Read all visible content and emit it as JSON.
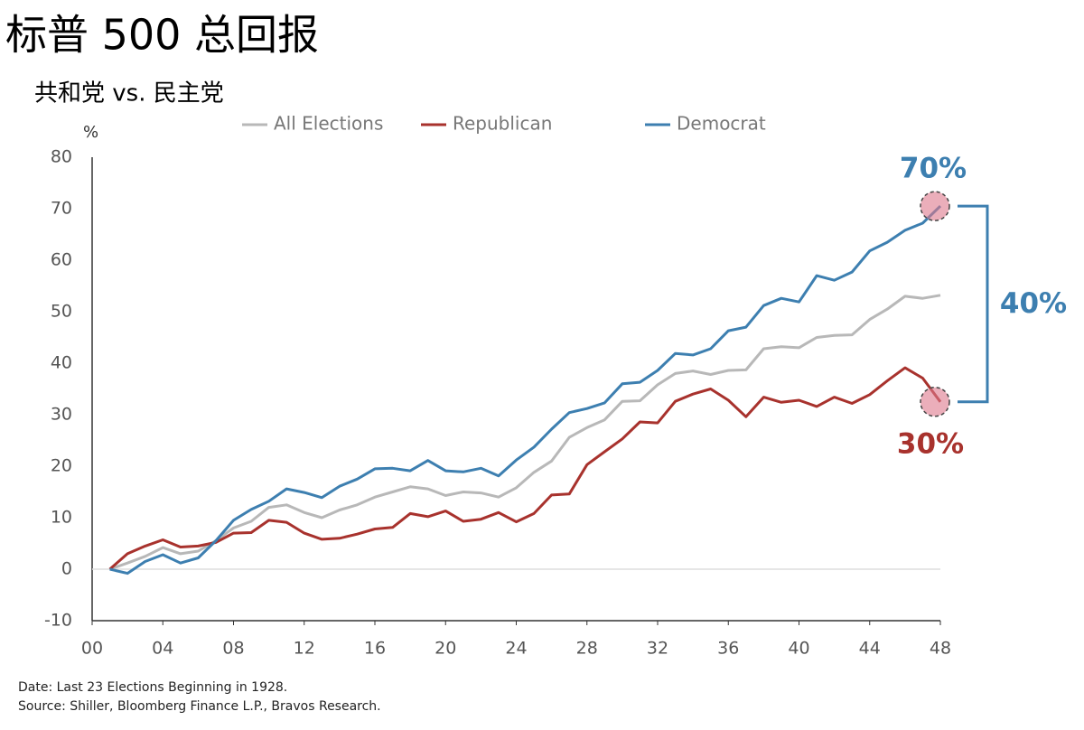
{
  "chart_data": {
    "type": "line",
    "title": "标普 500 总回报",
    "subtitle": "共和党 vs. 民主党",
    "ylabel": "%",
    "x": [
      1,
      2,
      3,
      4,
      5,
      6,
      7,
      8,
      9,
      10,
      11,
      12,
      13,
      14,
      15,
      16,
      17,
      18,
      19,
      20,
      21,
      22,
      23,
      24,
      25,
      26,
      27,
      28,
      29,
      30,
      31,
      32,
      33,
      34,
      35,
      36,
      37,
      38,
      39,
      40,
      41,
      42,
      43,
      44,
      45,
      46,
      47,
      48
    ],
    "series": [
      {
        "name": "All Elections",
        "color": "#b8b8b8",
        "values": [
          0,
          1.2,
          2.5,
          4.2,
          3,
          3.5,
          5.5,
          8,
          9.3,
          12,
          12.5,
          11,
          10,
          11.5,
          12.5,
          14,
          15,
          16,
          15.6,
          14.3,
          15,
          14.8,
          14,
          15.8,
          18.8,
          21,
          25.6,
          27.5,
          29,
          32.6,
          32.7,
          35.8,
          38,
          38.5,
          37.8,
          38.6,
          38.7,
          42.8,
          43.2,
          43,
          45,
          45.4,
          45.5,
          48.5,
          50.5,
          53,
          52.6,
          53.2
        ]
      },
      {
        "name": "Republican",
        "color": "#a8322d",
        "values": [
          0,
          3,
          4.5,
          5.7,
          4.3,
          4.5,
          5.2,
          7,
          7.1,
          9.5,
          9.1,
          7,
          5.8,
          6,
          6.8,
          7.8,
          8.1,
          10.8,
          10.2,
          11.3,
          9.3,
          9.7,
          11,
          9.2,
          10.8,
          14.4,
          14.6,
          20.3,
          22.8,
          25.3,
          28.6,
          28.4,
          32.6,
          34,
          35,
          32.8,
          29.6,
          33.4,
          32.4,
          32.8,
          31.6,
          33.4,
          32.2,
          33.9,
          36.6,
          39.1,
          37.1,
          32.5
        ]
      },
      {
        "name": "Democrat",
        "color": "#3d7fb0",
        "values": [
          0,
          -0.8,
          1.5,
          2.8,
          1.2,
          2.2,
          5.5,
          9.5,
          11.6,
          13.2,
          15.6,
          14.9,
          13.9,
          16.1,
          17.5,
          19.5,
          19.6,
          19.1,
          21.1,
          19.1,
          18.9,
          19.6,
          18.1,
          21.2,
          23.7,
          27.2,
          30.4,
          31.2,
          32.3,
          36,
          36.3,
          38.6,
          41.9,
          41.6,
          42.8,
          46.3,
          47,
          51.2,
          52.6,
          51.9,
          57,
          56.1,
          57.7,
          61.8,
          63.5,
          65.8,
          67.2,
          70.5
        ]
      }
    ],
    "xlim": [
      0,
      48
    ],
    "xticks": [
      {
        "value": 0,
        "label": "00"
      },
      {
        "value": 4,
        "label": "04"
      },
      {
        "value": 8,
        "label": "08"
      },
      12,
      16,
      20,
      24,
      28,
      32,
      36,
      40,
      44,
      48
    ],
    "ylim": [
      -10,
      80
    ],
    "yticks": [
      -10,
      0,
      10,
      20,
      30,
      40,
      50,
      60,
      70,
      80
    ],
    "grid": false,
    "legend": "top",
    "annotations": [
      "70%",
      "30%",
      "40%"
    ],
    "notes": [
      "Date: Last 23 Elections Beginning in 1928.",
      "Source: Shiller, Bloomberg Finance L.P., Bravos Research."
    ]
  }
}
